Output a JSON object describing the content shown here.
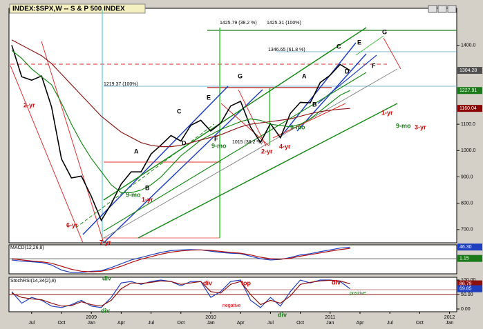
{
  "chart_data": [
    {
      "type": "line",
      "title": "INDEX:$SPX,W -- S & P 500 INDEX",
      "categories": [
        null,
        null,
        "Jul",
        null,
        null,
        "Oct",
        null,
        null,
        "Jan",
        null,
        null,
        "Apr",
        null,
        null,
        "Jul",
        null,
        null,
        "Oct",
        null,
        null,
        "Jan",
        null,
        null,
        "Apr",
        null,
        null,
        "Jul",
        null,
        null,
        "Oct",
        null,
        null,
        "Jan",
        null,
        null,
        "Apr",
        null,
        null,
        "Jul",
        null,
        null,
        "Oct",
        null,
        null,
        "Jan"
      ],
      "x_year_labels": [
        "2009",
        "2010",
        "2011",
        "2012"
      ],
      "series": [
        {
          "color": "#000000",
          "values": [
            1400,
            1280,
            1267,
            1283,
            1166,
            968,
            896,
            903,
            826,
            735,
            798,
            873,
            919,
            919,
            987,
            1021,
            1057,
            1036,
            1096,
            1115,
            1074,
            1104,
            1169,
            1187,
            1089,
            1031,
            1102,
            1049,
            1141,
            1183,
            1181,
            1258,
            1286,
            1327,
            1304,
            null,
            null,
            null,
            null,
            null,
            null,
            null,
            null,
            null,
            null
          ]
        },
        {
          "color": "#1a8a1a",
          "values": [
            1380,
            1350,
            1310,
            1280,
            1250,
            1180,
            1100,
            1030,
            970,
            920,
            870,
            840,
            840,
            850,
            870,
            900,
            940,
            980,
            1010,
            1040,
            1060,
            1080,
            1095,
            1110,
            1120,
            1115,
            1100,
            1095,
            1090,
            1100,
            1120,
            1150,
            1180,
            1210,
            1228,
            null,
            null,
            null,
            null,
            null,
            null,
            null,
            null,
            null,
            null
          ]
        },
        {
          "color": "#8b1a1a",
          "values": [
            1420,
            1400,
            1380,
            1360,
            1330,
            1290,
            1250,
            1210,
            1170,
            1130,
            1100,
            1070,
            1050,
            1030,
            1020,
            1015,
            1015,
            1020,
            1030,
            1040,
            1050,
            1060,
            1075,
            1090,
            1100,
            1105,
            1110,
            1115,
            1120,
            1130,
            1140,
            1148,
            1153,
            1157,
            1160,
            null,
            null,
            null,
            null,
            null,
            null,
            null,
            null,
            null,
            null
          ]
        }
      ],
      "ylim": [
        650,
        1540
      ],
      "yticks": [
        {
          "value": 700,
          "label": "700.0"
        },
        {
          "value": 800,
          "label": "800.0"
        },
        {
          "value": 900,
          "label": "900.0"
        },
        {
          "value": 1000,
          "label": "1000.0"
        },
        {
          "value": 1100,
          "label": "1100.0"
        },
        {
          "value": 1400,
          "label": "1400.0"
        }
      ],
      "price_tags": [
        {
          "value": 1304.28,
          "label": "1304.28",
          "color": "#505050"
        },
        {
          "value": 1227.91,
          "label": "1227.91",
          "color": "#1a7a1a"
        },
        {
          "value": 1160.04,
          "label": "1160.04",
          "color": "#8b0000"
        }
      ],
      "annotations": [
        {
          "text": "2-yr",
          "color": "#d00000"
        },
        {
          "text": "6-yr",
          "color": "#d00000"
        },
        {
          "text": "7-yr",
          "color": "#d00000"
        },
        {
          "text": "9-mo",
          "color": "#1a7a1a"
        },
        {
          "text": "1-yr",
          "color": "#d00000"
        },
        {
          "text": "A",
          "color": "#000000"
        },
        {
          "text": "B",
          "color": "#000000"
        },
        {
          "text": "C",
          "color": "#000000"
        },
        {
          "text": "D",
          "color": "#000000"
        },
        {
          "text": "E",
          "color": "#000000"
        },
        {
          "text": "F",
          "color": "#000000"
        },
        {
          "text": "9-mo",
          "color": "#1a7a1a"
        },
        {
          "text": "G",
          "color": "#000000"
        },
        {
          "text": "1015 (38.2 %)",
          "color": "#000000"
        },
        {
          "text": "2-yr",
          "color": "#d00000"
        },
        {
          "text": "4-yr",
          "color": "#d00000"
        },
        {
          "text": "A",
          "color": "#000000"
        },
        {
          "text": "B",
          "color": "#000000"
        },
        {
          "text": "9-mo",
          "color": "#1a7a1a"
        },
        {
          "text": "C",
          "color": "#000000"
        },
        {
          "text": "D",
          "color": "#000000"
        },
        {
          "text": "E",
          "color": "#000000"
        },
        {
          "text": "F",
          "color": "#000000"
        },
        {
          "text": "G",
          "color": "#000000"
        },
        {
          "text": "1-yr",
          "color": "#d00000"
        },
        {
          "text": "9-mo",
          "color": "#1a7a1a"
        },
        {
          "text": "3-yr",
          "color": "#d00000"
        },
        {
          "text": "1425.79 (38.2 %)",
          "color": "#000000"
        },
        {
          "text": "1425.31 (100%)",
          "color": "#000000"
        },
        {
          "text": "1346.65 (61.8 %)",
          "color": "#000000"
        },
        {
          "text": "1219.37 (100%)",
          "color": "#000000"
        }
      ]
    },
    {
      "type": "line",
      "title": "MACD(12,26,8)",
      "series": [
        {
          "color": "#1f3fbf",
          "values": [
            -5,
            -10,
            -12,
            -15,
            -25,
            -45,
            -55,
            -55,
            -50,
            -48,
            -35,
            -20,
            -5,
            5,
            15,
            25,
            32,
            35,
            36,
            35,
            30,
            25,
            22,
            20,
            10,
            0,
            -5,
            -3,
            5,
            15,
            20,
            28,
            35,
            42,
            46
          ]
        },
        {
          "color": "#b01010",
          "values": [
            0,
            -5,
            -9,
            -12,
            -18,
            -30,
            -42,
            -50,
            -52,
            -50,
            -42,
            -30,
            -15,
            -2,
            8,
            18,
            26,
            31,
            34,
            35,
            33,
            29,
            25,
            22,
            15,
            6,
            0,
            -2,
            2,
            10,
            16,
            23,
            30,
            36,
            41
          ]
        }
      ],
      "ylim": [
        -60,
        55
      ],
      "price_tags": [
        {
          "value": 46.3,
          "label": "46.30",
          "color": "#1f3fbf"
        },
        {
          "value": 1.15,
          "label": "1.15",
          "color": "#1a7a1a"
        }
      ],
      "annotations": [
        {
          "text": "div",
          "color": "#1a7a1a"
        }
      ]
    },
    {
      "type": "line",
      "title": "StochRSI(14,34(2),8)",
      "series": [
        {
          "color": "#1f3fbf",
          "values": [
            60,
            20,
            40,
            30,
            10,
            5,
            15,
            30,
            10,
            5,
            40,
            90,
            95,
            85,
            95,
            100,
            95,
            80,
            95,
            95,
            40,
            60,
            95,
            100,
            30,
            5,
            40,
            10,
            60,
            100,
            90,
            100,
            100,
            95,
            70
          ]
        },
        {
          "color": "#8b1010",
          "values": [
            55,
            40,
            35,
            32,
            20,
            10,
            12,
            25,
            15,
            10,
            30,
            70,
            90,
            88,
            92,
            97,
            95,
            85,
            90,
            95,
            60,
            55,
            85,
            95,
            50,
            15,
            30,
            20,
            45,
            85,
            92,
            97,
            99,
            97,
            87
          ]
        }
      ],
      "ylim": [
        0,
        100
      ],
      "yticks": [
        {
          "value": 0,
          "label": "0.00"
        },
        {
          "value": 50,
          "label": "50.00"
        },
        {
          "value": 100,
          "label": "100.00"
        }
      ],
      "price_tags": [
        {
          "value": 86.79,
          "label": "86.79",
          "color": "#8b1010"
        },
        {
          "value": 69.85,
          "label": "69.85",
          "color": "#1f3fbf"
        }
      ],
      "annotations": [
        {
          "text": "div",
          "color": "#1a7a1a"
        },
        {
          "text": "div",
          "color": "#d00000"
        },
        {
          "text": "top",
          "color": "#d00000"
        },
        {
          "text": "negative",
          "color": "#d00000"
        },
        {
          "text": "div",
          "color": "#1a7a1a"
        },
        {
          "text": "div",
          "color": "#d00000"
        },
        {
          "text": "positive",
          "color": "#1a7a1a"
        }
      ]
    }
  ]
}
